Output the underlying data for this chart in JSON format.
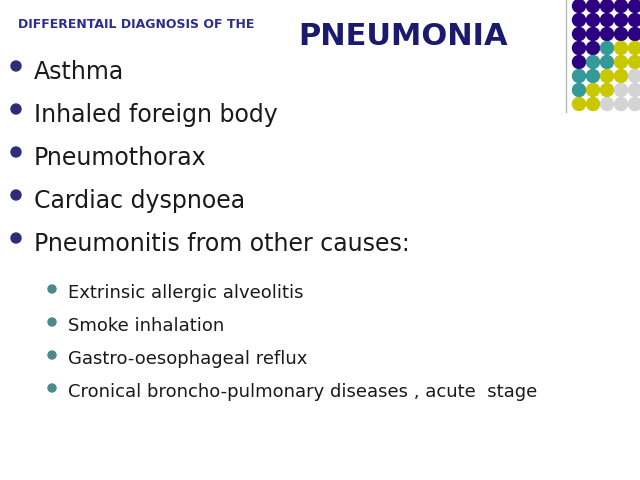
{
  "title_small": "DIFFERENTAIL DIAGNOSIS OF THE",
  "title_large": "PNEUMONIA",
  "title_small_color": "#2d2d8f",
  "title_large_color": "#1a1a6e",
  "background_color": "#ffffff",
  "bullet_color_main": "#2d2d7a",
  "bullet_color_sub": "#4a8a8a",
  "text_color": "#1a1a1a",
  "main_items": [
    "Asthma",
    "Inhaled foreign body",
    "Pneumothorax",
    "Cardiac dyspnoea",
    "Pneumonitis from other causes:"
  ],
  "sub_items": [
    "Extrinsic allergic alveolitis",
    "Smoke inhalation",
    "Gastro-oesophageal reflux",
    "Cronical broncho-pulmonary diseases , acute  stage"
  ],
  "dot_grid_colors": [
    [
      "#2d0080",
      "#2d0080",
      "#2d0080",
      "#2d0080",
      "#2d0080"
    ],
    [
      "#2d0080",
      "#2d0080",
      "#2d0080",
      "#2d0080",
      "#2d0080"
    ],
    [
      "#2d0080",
      "#2d0080",
      "#2d0080",
      "#2d0080",
      "#2d0080"
    ],
    [
      "#2d0080",
      "#2d0080",
      "#339999",
      "#c8c800",
      "#c8c800"
    ],
    [
      "#2d0080",
      "#339999",
      "#339999",
      "#c8c800",
      "#c8c800"
    ],
    [
      "#339999",
      "#339999",
      "#c8c800",
      "#c8c800",
      "#d4d4d4"
    ],
    [
      "#339999",
      "#c8c800",
      "#c8c800",
      "#d4d4d4",
      "#d4d4d4"
    ],
    [
      "#c8c800",
      "#c8c800",
      "#d4d4d4",
      "#d4d4d4",
      "#d4d4d4"
    ]
  ],
  "divider_line_color": "#bbbbbb",
  "main_fontsize": 17,
  "sub_fontsize": 13,
  "title_small_fontsize": 9,
  "title_large_fontsize": 22
}
